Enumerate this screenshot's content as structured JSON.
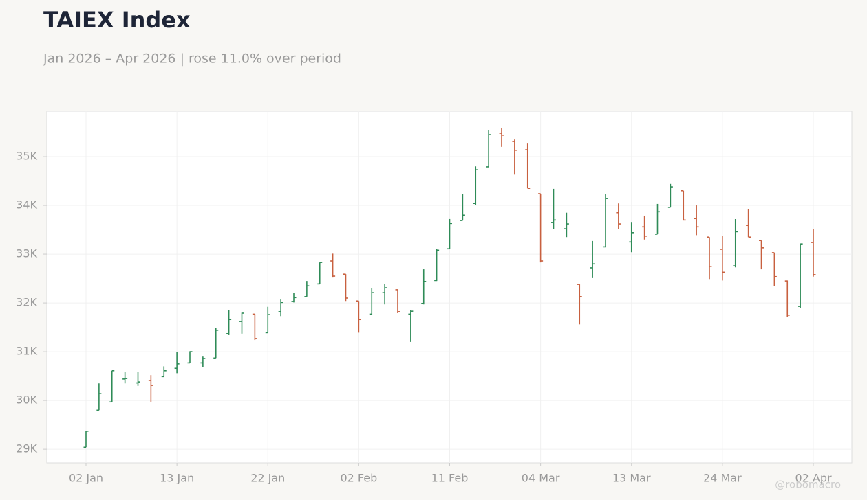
{
  "chart_data": {
    "type": "ohlc",
    "title": "TAIEX Index",
    "subtitle": "Jan 2026 – Apr 2026 | rose 11.0% over period",
    "watermark": "@robomacro",
    "categories": [
      "02 Jan",
      null,
      null,
      null,
      null,
      null,
      null,
      "13 Jan",
      null,
      null,
      null,
      null,
      null,
      null,
      "22 Jan",
      null,
      null,
      null,
      null,
      null,
      null,
      "02 Feb",
      null,
      null,
      null,
      null,
      null,
      null,
      "11 Feb",
      null,
      null,
      null,
      null,
      null,
      null,
      "04 Mar",
      null,
      null,
      null,
      null,
      null,
      null,
      "13 Mar",
      null,
      null,
      null,
      null,
      null,
      null,
      "24 Mar",
      null,
      null,
      null,
      null,
      null,
      null,
      "02 Apr"
    ],
    "open": [
      29040,
      29800,
      29970,
      30440,
      30360,
      30410,
      30490,
      30660,
      30770,
      30770,
      30870,
      31370,
      31620,
      31770,
      31390,
      31820,
      32030,
      32130,
      32390,
      32860,
      32590,
      32040,
      31770,
      32210,
      32270,
      31770,
      31990,
      32460,
      33110,
      33690,
      34040,
      34790,
      35480,
      35310,
      35140,
      34240,
      33650,
      33520,
      32380,
      32720,
      33150,
      33850,
      33250,
      33560,
      33410,
      33960,
      34300,
      33730,
      33350,
      33100,
      32760,
      33590,
      33280,
      33030,
      32450,
      31930,
      33240
    ],
    "high": [
      29380,
      30350,
      30610,
      30590,
      30590,
      30520,
      30700,
      30990,
      31010,
      30900,
      31490,
      31850,
      31800,
      31770,
      31920,
      32070,
      32210,
      32450,
      32830,
      33010,
      32590,
      32040,
      32310,
      32390,
      32270,
      31860,
      32690,
      33100,
      33720,
      34230,
      34800,
      35540,
      35590,
      35350,
      35280,
      34240,
      34340,
      33850,
      32380,
      33270,
      34230,
      34040,
      33660,
      33790,
      34030,
      34440,
      34300,
      34000,
      33350,
      33380,
      33720,
      33920,
      33280,
      33030,
      32460,
      33210,
      33510
    ],
    "low": [
      29040,
      29800,
      29970,
      30350,
      30300,
      29960,
      30490,
      30560,
      30770,
      30690,
      30870,
      31340,
      31370,
      31240,
      31390,
      31730,
      32010,
      32130,
      32390,
      32520,
      32040,
      31390,
      31750,
      31970,
      31790,
      31200,
      31970,
      32450,
      33110,
      33690,
      34010,
      34790,
      35200,
      34630,
      34350,
      32830,
      33520,
      33350,
      31560,
      32510,
      33150,
      33510,
      33040,
      33300,
      33410,
      33960,
      33690,
      33390,
      32490,
      32460,
      32730,
      33350,
      32690,
      32350,
      31720,
      31900,
      32540
    ],
    "close": [
      29370,
      30140,
      30610,
      30450,
      30380,
      30310,
      30610,
      30750,
      31000,
      30860,
      31440,
      31660,
      31790,
      31270,
      31760,
      32010,
      32110,
      32350,
      32830,
      32550,
      32100,
      31660,
      32210,
      32310,
      31820,
      31830,
      32440,
      33080,
      33630,
      33800,
      34730,
      35450,
      35440,
      35130,
      34350,
      32860,
      33700,
      33620,
      32130,
      32800,
      34140,
      33620,
      33440,
      33370,
      33870,
      34380,
      33700,
      33560,
      32750,
      32630,
      33460,
      33350,
      33130,
      32540,
      31750,
      33210,
      32580
    ],
    "up_color": "#2e8b57",
    "down_color": "#c8603f",
    "ylim": [
      28720,
      35930
    ],
    "yticks": [
      {
        "value": 29000,
        "label": "29K"
      },
      {
        "value": 30000,
        "label": "30K"
      },
      {
        "value": 31000,
        "label": "31K"
      },
      {
        "value": 32000,
        "label": "32K"
      },
      {
        "value": 33000,
        "label": "33K"
      },
      {
        "value": 34000,
        "label": "34K"
      },
      {
        "value": 35000,
        "label": "35K"
      }
    ],
    "grid": true
  }
}
